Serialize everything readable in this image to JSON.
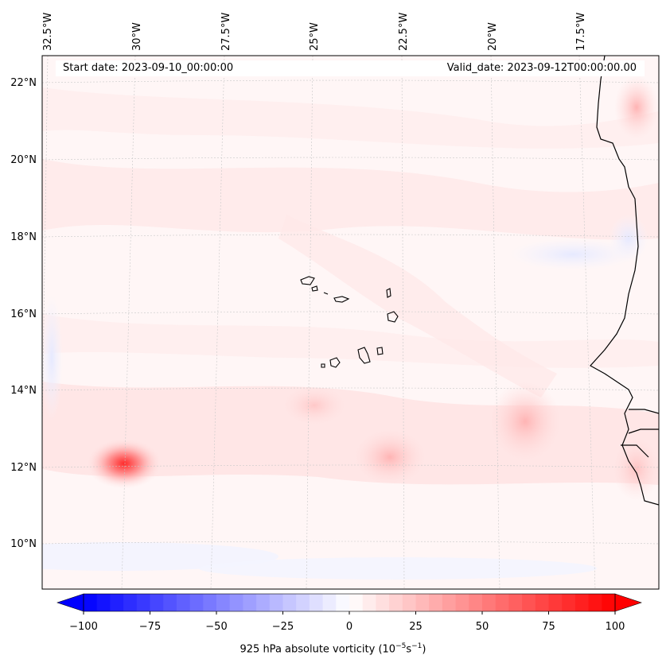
{
  "header": {
    "start_date": "Start date: 2023-09-10_00:00:00",
    "valid_date": "Valid_date: 2023-09-12T00:00:00.00"
  },
  "lon_labels": [
    "32.5°W",
    "30°W",
    "27.5°W",
    "25°W",
    "22.5°W",
    "20°W",
    "17.5°W"
  ],
  "lat_labels": [
    "22°N",
    "20°N",
    "18°N",
    "16°N",
    "14°N",
    "12°N",
    "10°N"
  ],
  "colorbar": {
    "title": "925 hPa absolute vorticity (10",
    "title_sup1": "−5",
    "title_mid": "s",
    "title_sup2": "−1",
    "title_end": ")",
    "ticks": [
      "−100",
      "−75",
      "−50",
      "−25",
      "0",
      "25",
      "50",
      "75",
      "100"
    ],
    "min": -100,
    "max": 100,
    "levels": 40,
    "low_color": "#0000ff",
    "mid_color": "#ffffff",
    "high_color": "#ff0000"
  },
  "map": {
    "background_color": "#fff6f6",
    "coast_color": "#000000"
  }
}
